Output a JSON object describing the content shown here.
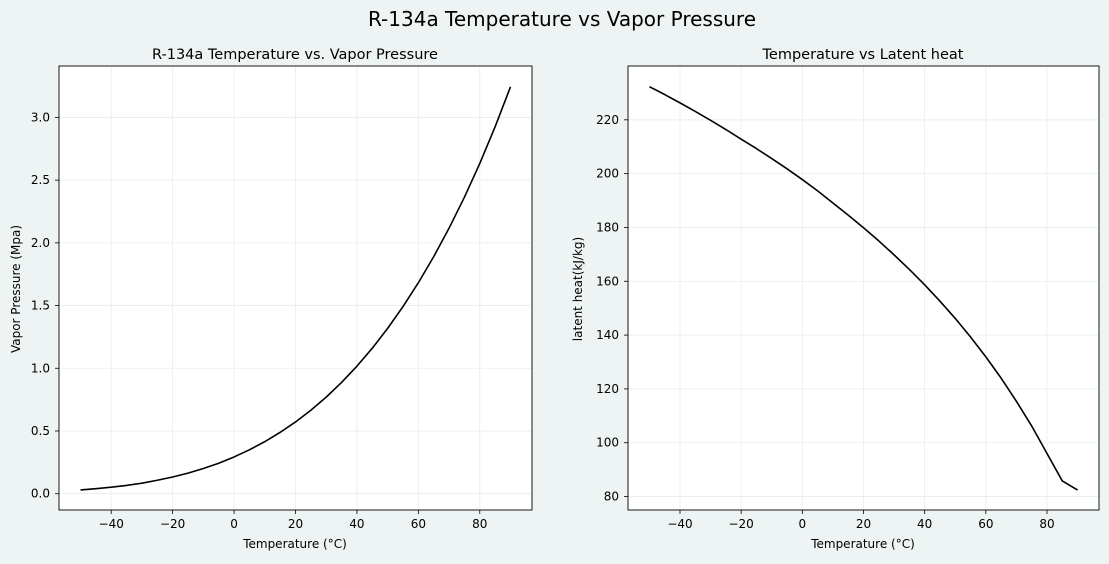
{
  "figure": {
    "suptitle": "R-134a Temperature vs Vapor Pressure",
    "background": "#eef4f3"
  },
  "chart_data": [
    {
      "type": "line",
      "title": "R-134a Temperature vs. Vapor Pressure",
      "xlabel": "Temperature (°C)",
      "ylabel": "Vapor Pressure (Mpa)",
      "xlim": [
        -57,
        97
      ],
      "ylim": [
        -0.13,
        3.41
      ],
      "xticks": [
        -40,
        -20,
        0,
        20,
        40,
        60,
        80
      ],
      "xtick_labels": [
        "−40",
        "−20",
        "0",
        "20",
        "40",
        "60",
        "80"
      ],
      "yticks": [
        0.0,
        0.5,
        1.0,
        1.5,
        2.0,
        2.5,
        3.0
      ],
      "ytick_labels": [
        "0.0",
        "0.5",
        "1.0",
        "1.5",
        "2.0",
        "2.5",
        "3.0"
      ],
      "grid": true,
      "line_color": "#000000",
      "x": [
        -50,
        -45,
        -40,
        -35,
        -30,
        -25,
        -20,
        -15,
        -10,
        -5,
        0,
        5,
        10,
        15,
        20,
        25,
        30,
        35,
        40,
        45,
        50,
        55,
        60,
        65,
        70,
        75,
        80,
        85,
        90
      ],
      "y": [
        0.03,
        0.04,
        0.052,
        0.066,
        0.084,
        0.107,
        0.133,
        0.164,
        0.201,
        0.243,
        0.293,
        0.35,
        0.415,
        0.489,
        0.572,
        0.665,
        0.77,
        0.887,
        1.017,
        1.16,
        1.318,
        1.492,
        1.682,
        1.89,
        2.117,
        2.364,
        2.633,
        2.926,
        3.244
      ]
    },
    {
      "type": "line",
      "title": "Temperature vs Latent heat",
      "xlabel": "Temperature (°C)",
      "ylabel": "latent heat(kJ/kg)",
      "xlim": [
        -57,
        97
      ],
      "ylim": [
        75,
        240
      ],
      "xticks": [
        -40,
        -20,
        0,
        20,
        40,
        60,
        80
      ],
      "xtick_labels": [
        "−40",
        "−20",
        "0",
        "20",
        "40",
        "60",
        "80"
      ],
      "yticks": [
        80,
        100,
        120,
        140,
        160,
        180,
        200,
        220
      ],
      "ytick_labels": [
        "80",
        "100",
        "120",
        "140",
        "160",
        "180",
        "200",
        "220"
      ],
      "grid": true,
      "line_color": "#000000",
      "x": [
        -50,
        -45,
        -40,
        -35,
        -30,
        -25,
        -20,
        -15,
        -10,
        -5,
        0,
        5,
        10,
        15,
        20,
        25,
        30,
        35,
        40,
        45,
        50,
        55,
        60,
        65,
        70,
        75,
        80,
        85,
        90
      ],
      "y": [
        232.3,
        229.4,
        226.3,
        223.1,
        219.8,
        216.4,
        212.8,
        209.3,
        205.6,
        201.8,
        197.8,
        193.6,
        189.1,
        184.6,
        179.9,
        175.0,
        169.8,
        164.4,
        158.7,
        152.6,
        146.2,
        139.3,
        131.9,
        124.0,
        115.4,
        106.2,
        96.0,
        85.8,
        82.4
      ]
    }
  ]
}
